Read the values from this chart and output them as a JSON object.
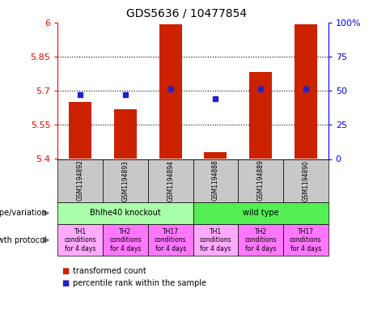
{
  "title": "GDS5636 / 10477854",
  "samples": [
    "GSM1194892",
    "GSM1194893",
    "GSM1194894",
    "GSM1194888",
    "GSM1194889",
    "GSM1194890"
  ],
  "transformed_counts": [
    5.65,
    5.62,
    5.99,
    5.43,
    5.78,
    5.99
  ],
  "percentile_ranks": [
    47,
    47,
    51,
    44,
    51,
    51
  ],
  "y_min": 5.4,
  "y_max": 6.0,
  "y_ticks": [
    5.4,
    5.55,
    5.7,
    5.85,
    6.0
  ],
  "y_tick_labels": [
    "5.4",
    "5.55",
    "5.7",
    "5.85",
    "6"
  ],
  "right_y_ticks": [
    0,
    25,
    50,
    75,
    100
  ],
  "right_y_tick_labels": [
    "0",
    "25",
    "50",
    "75",
    "100%"
  ],
  "bar_color": "#CC2200",
  "dot_color": "#2222CC",
  "genotype_groups": [
    {
      "label": "Bhlhe40 knockout",
      "start": 0,
      "end": 3,
      "color": "#AAFFAA"
    },
    {
      "label": "wild type",
      "start": 3,
      "end": 6,
      "color": "#55EE55"
    }
  ],
  "growth_protocols": [
    {
      "label": "TH1\nconditions\nfor 4 days",
      "color": "#FFAAFF"
    },
    {
      "label": "TH2\nconditions\nfor 4 days",
      "color": "#FF77FF"
    },
    {
      "label": "TH17\nconditions\nfor 4 days",
      "color": "#FF77FF"
    },
    {
      "label": "TH1\nconditions\nfor 4 days",
      "color": "#FFAAFF"
    },
    {
      "label": "TH2\nconditions\nfor 4 days",
      "color": "#FF77FF"
    },
    {
      "label": "TH17\nconditions\nfor 4 days",
      "color": "#FF77FF"
    }
  ],
  "legend_red_label": "transformed count",
  "legend_blue_label": "percentile rank within the sample",
  "genotype_label": "genotype/variation",
  "protocol_label": "growth protocol",
  "sample_box_color": "#C8C8C8"
}
